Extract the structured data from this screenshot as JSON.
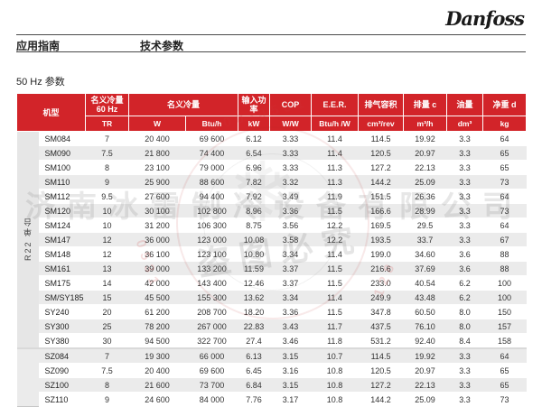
{
  "page": {
    "logo": "Danfoss",
    "nav_left": "应用指南",
    "nav_right": "技术参数",
    "section_title": "50 Hz 参数"
  },
  "colors": {
    "header_red": "#d22429",
    "row_alt_gray": "#ebebeb",
    "band_gray": "#e6e6e6"
  },
  "table": {
    "header": {
      "model": "机型",
      "cap60_line1": "名义冷量",
      "cap60_line2": "60 Hz",
      "capacity": "名义冷量",
      "input_power": "输入功率",
      "cop": "COP",
      "eer": "E.E.R.",
      "swept_volume": "排气容积",
      "displacement": "排量 c",
      "oil_charge": "油量",
      "net_weight": "净重 d",
      "units": [
        "TR",
        "W",
        "Btu/h",
        "kW",
        "W/W",
        "Btu/h /W",
        "cm³/rev",
        "m³/h",
        "dm³",
        "kg"
      ]
    },
    "group_label": "R22 单台",
    "groups": [
      {
        "rows": [
          [
            "SM084",
            "7",
            "20 400",
            "69 600",
            "6.12",
            "3.33",
            "11.4",
            "114.5",
            "19.92",
            "3.3",
            "64"
          ],
          [
            "SM090",
            "7.5",
            "21 800",
            "74 400",
            "6.54",
            "3.33",
            "11.4",
            "120.5",
            "20.97",
            "3.3",
            "65"
          ],
          [
            "SM100",
            "8",
            "23 100",
            "79 000",
            "6.96",
            "3.33",
            "11.3",
            "127.2",
            "22.13",
            "3.3",
            "65"
          ],
          [
            "SM110",
            "9",
            "25 900",
            "88 600",
            "7.82",
            "3.32",
            "11.3",
            "144.2",
            "25.09",
            "3.3",
            "73"
          ],
          [
            "SM112",
            "9.5",
            "27 600",
            "94 400",
            "7.92",
            "3.49",
            "11.9",
            "151.5",
            "26.36",
            "3.3",
            "64"
          ],
          [
            "SM120",
            "10",
            "30 100",
            "102 800",
            "8.96",
            "3.36",
            "11.5",
            "166.6",
            "28.99",
            "3.3",
            "73"
          ],
          [
            "SM124",
            "10",
            "31 200",
            "106 300",
            "8.75",
            "3.56",
            "12.2",
            "169.5",
            "29.5",
            "3.3",
            "64"
          ],
          [
            "SM147",
            "12",
            "36 000",
            "123 000",
            "10.08",
            "3.58",
            "12.2",
            "193.5",
            "33.7",
            "3.3",
            "67"
          ],
          [
            "SM148",
            "12",
            "36 100",
            "123 100",
            "10.80",
            "3.34",
            "11.4",
            "199.0",
            "34.60",
            "3.6",
            "88"
          ],
          [
            "SM161",
            "13",
            "39 000",
            "133 200",
            "11.59",
            "3.37",
            "11.5",
            "216.6",
            "37.69",
            "3.6",
            "88"
          ],
          [
            "SM175",
            "14",
            "42 000",
            "143 400",
            "12.46",
            "3.37",
            "11.5",
            "233.0",
            "40.54",
            "6.2",
            "100"
          ],
          [
            "SM/SY185",
            "15",
            "45 500",
            "155 300",
            "13.62",
            "3.34",
            "11.4",
            "249.9",
            "43.48",
            "6.2",
            "100"
          ],
          [
            "SY240",
            "20",
            "61 200",
            "208 700",
            "18.20",
            "3.36",
            "11.5",
            "347.8",
            "60.50",
            "8.0",
            "150"
          ],
          [
            "SY300",
            "25",
            "78 200",
            "267 000",
            "22.83",
            "3.43",
            "11.7",
            "437.5",
            "76.10",
            "8.0",
            "157"
          ],
          [
            "SY380",
            "30",
            "94 500",
            "322 700",
            "27.4",
            "3.46",
            "11.8",
            "531.2",
            "92.40",
            "8.4",
            "158"
          ]
        ]
      },
      {
        "rows": [
          [
            "SZ084",
            "7",
            "19 300",
            "66 000",
            "6.13",
            "3.15",
            "10.7",
            "114.5",
            "19.92",
            "3.3",
            "64"
          ],
          [
            "SZ090",
            "7.5",
            "20 400",
            "69 600",
            "6.45",
            "3.16",
            "10.8",
            "120.5",
            "20.97",
            "3.3",
            "65"
          ],
          [
            "SZ100",
            "8",
            "21 600",
            "73 700",
            "6.84",
            "3.15",
            "10.8",
            "127.2",
            "22.13",
            "3.3",
            "65"
          ],
          [
            "SZ110",
            "9",
            "24 600",
            "84 000",
            "7.76",
            "3.17",
            "10.8",
            "144.2",
            "25.09",
            "3.3",
            "73"
          ]
        ]
      }
    ]
  },
  "watermark": {
    "company": "济南冰雷制冷设备有限公司",
    "warning": "盗图必究",
    "numbers_1": "400-0531",
    "numbers_2": "0531",
    "numbers_3": "128"
  }
}
